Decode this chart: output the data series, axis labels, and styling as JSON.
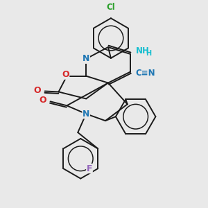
{
  "background_color": "#e9e9e9",
  "figsize": [
    3.0,
    3.0
  ],
  "dpi": 100,
  "bond_color": "#1a1a1a",
  "bond_width": 1.4,
  "cl_color": "#2ca02c",
  "n_color": "#1f77b4",
  "nh2_color": "#17becf",
  "o_color": "#d62728",
  "f_color": "#9467bd",
  "cn_color": "#1f77b4",
  "xlim": [
    -0.55,
    0.65
  ],
  "ylim": [
    -0.6,
    0.85
  ]
}
